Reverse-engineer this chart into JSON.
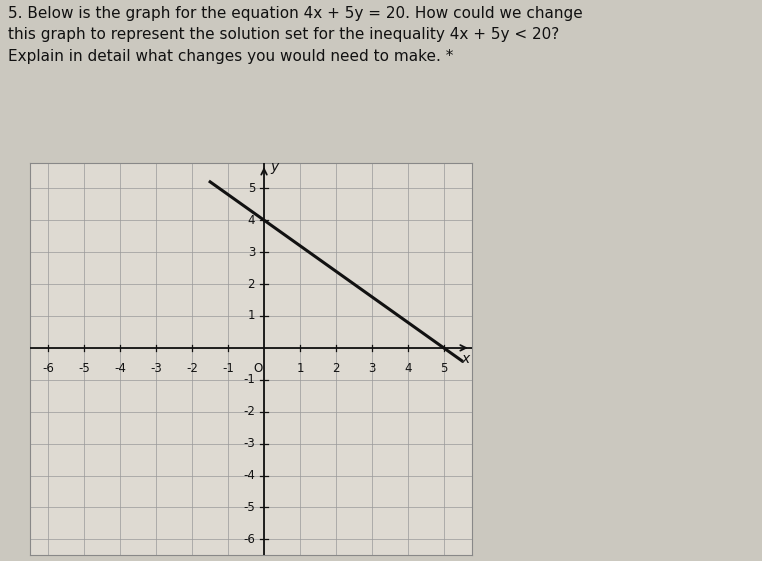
{
  "title_text": "5. Below is the graph for the equation 4x + 5y = 20. How could we change\nthis graph to represent the solution set for the inequality 4x + 5y < 20?\nExplain in detail what changes you would need to make. *",
  "title_fontsize": 11.0,
  "title_color": "#111111",
  "background_color": "#cbc8bf",
  "plot_background": "#dedad2",
  "grid_color": "#999999",
  "axis_color": "#111111",
  "line_color": "#111111",
  "line_width": 2.2,
  "xlim": [
    -6.5,
    5.8
  ],
  "ylim": [
    -6.5,
    5.8
  ],
  "xticks": [
    -6,
    -5,
    -4,
    -3,
    -2,
    -1,
    1,
    2,
    3,
    4,
    5
  ],
  "yticks": [
    -6,
    -5,
    -4,
    -3,
    -2,
    -1,
    1,
    2,
    3,
    4,
    5
  ],
  "tick_fontsize": 8.5,
  "slope": -0.8,
  "intercept": 4.0,
  "line_x1": -1.5,
  "line_x2": 5.5
}
